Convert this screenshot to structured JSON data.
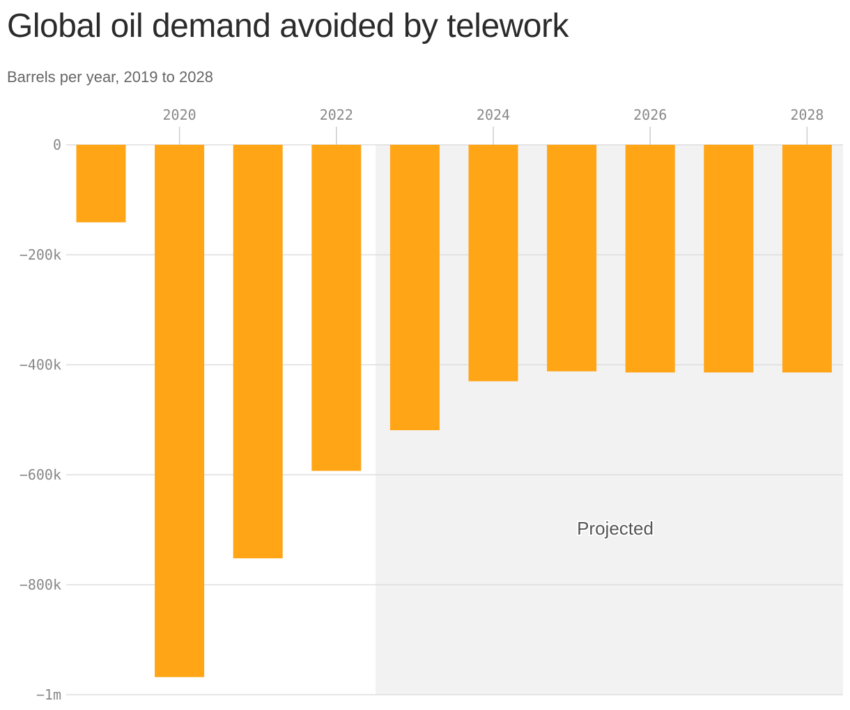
{
  "chart_data": {
    "type": "bar",
    "title": "Global oil demand avoided by telework",
    "subtitle": "Barrels per year, 2019 to 2028",
    "xlabel": "",
    "ylabel": "",
    "categories": [
      "2019",
      "2020",
      "2021",
      "2022",
      "2023",
      "2024",
      "2025",
      "2026",
      "2027",
      "2028"
    ],
    "values": [
      -141000,
      -968000,
      -752000,
      -593000,
      -519000,
      -430000,
      -412000,
      -414000,
      -414000,
      -414000
    ],
    "ylim": [
      -1000000,
      0
    ],
    "x_ticks": [
      "2020",
      "2022",
      "2024",
      "2026",
      "2028"
    ],
    "y_ticks": [
      {
        "value": 0,
        "label": "0"
      },
      {
        "value": -200000,
        "label": "−200k"
      },
      {
        "value": -400000,
        "label": "−400k"
      },
      {
        "value": -600000,
        "label": "−600k"
      },
      {
        "value": -800000,
        "label": "−800k"
      },
      {
        "value": -1000000,
        "label": "−1m"
      }
    ],
    "x_axis_position": "top",
    "grid": true,
    "bar_color": "#ffa516",
    "shaded_region": {
      "start": "2023",
      "end": "2028",
      "label": "Projected",
      "color": "#f2f2f2"
    }
  }
}
